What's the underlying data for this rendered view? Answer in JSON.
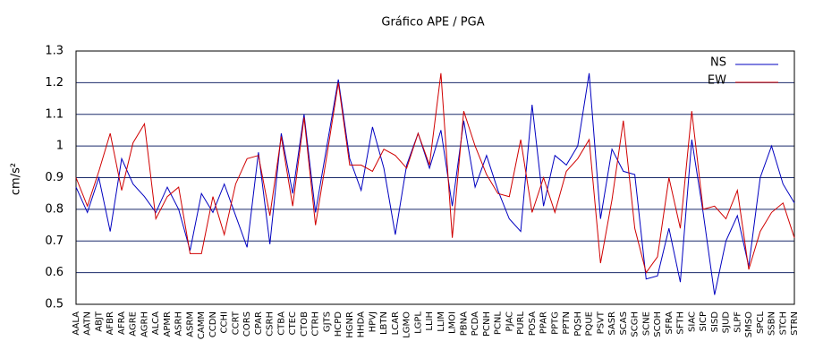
{
  "chart_data": {
    "type": "line",
    "title": "Gráfico  APE / PGA",
    "ylabel": "cm/s²",
    "categories": [
      "AALA",
      "AATN",
      "ABJT",
      "AFBR",
      "AFRA",
      "AGRE",
      "AGRH",
      "ALCA",
      "APMR",
      "ASRH",
      "ASRM",
      "CAMM",
      "CCDN",
      "CCHI",
      "CCRT",
      "CORS",
      "CPAR",
      "CSRH",
      "CTBA",
      "CTEC",
      "CTOB",
      "CTRH",
      "GJTS",
      "HCPD",
      "HGNR",
      "HHDA",
      "HPVJ",
      "LBTN",
      "LCAR",
      "LGMO",
      "LGPL",
      "LLIH",
      "LLIM",
      "LMOI",
      "PBNA",
      "PCDA",
      "PCNH",
      "PCNL",
      "PJAC",
      "PURL",
      "POSA",
      "PPAR",
      "PPTG",
      "PPTN",
      "PQSH",
      "PQUE",
      "PSVT",
      "SASR",
      "SCAS",
      "SCGH",
      "SCNE",
      "SCOH",
      "SFRA",
      "SFTH",
      "SIAC",
      "SICP",
      "SISD",
      "SJUD",
      "SLPF",
      "SMSO",
      "SPCL",
      "SSBN",
      "STCH",
      "STRN"
    ],
    "series": [
      {
        "name": "NS",
        "color": "#0000c0",
        "values": [
          0.87,
          0.79,
          0.9,
          0.73,
          0.96,
          0.88,
          0.84,
          0.79,
          0.87,
          0.8,
          0.67,
          0.85,
          0.79,
          0.88,
          0.78,
          0.68,
          0.98,
          0.69,
          1.04,
          0.85,
          1.1,
          0.79,
          1.0,
          1.21,
          0.96,
          0.86,
          1.06,
          0.93,
          0.72,
          0.94,
          1.04,
          0.93,
          1.05,
          0.81,
          1.08,
          0.87,
          0.97,
          0.86,
          0.77,
          0.73,
          1.13,
          0.81,
          0.97,
          0.94,
          1.0,
          1.23,
          0.77,
          0.99,
          0.92,
          0.91,
          0.58,
          0.59,
          0.74,
          0.57,
          1.02,
          0.79,
          0.53,
          0.7,
          0.78,
          0.62,
          0.9,
          1.0,
          0.88,
          0.82
        ]
      },
      {
        "name": "EW",
        "color": "#d00000",
        "values": [
          0.9,
          0.81,
          0.92,
          1.04,
          0.86,
          1.01,
          1.07,
          0.77,
          0.84,
          0.87,
          0.66,
          0.66,
          0.84,
          0.72,
          0.88,
          0.96,
          0.97,
          0.78,
          1.03,
          0.81,
          1.09,
          0.75,
          0.97,
          1.2,
          0.94,
          0.94,
          0.92,
          0.99,
          0.97,
          0.93,
          1.04,
          0.94,
          1.23,
          0.71,
          1.11,
          1.0,
          0.91,
          0.85,
          0.84,
          1.02,
          0.79,
          0.9,
          0.79,
          0.92,
          0.96,
          1.02,
          0.63,
          0.83,
          1.08,
          0.74,
          0.6,
          0.65,
          0.9,
          0.74,
          1.11,
          0.8,
          0.81,
          0.77,
          0.86,
          0.61,
          0.73,
          0.79,
          0.82,
          0.71
        ]
      }
    ],
    "ylim": [
      0.5,
      1.3
    ],
    "yticks": [
      0.5,
      0.6,
      0.7,
      0.8,
      0.9,
      1,
      1.1,
      1.2,
      1.3
    ],
    "grid": true,
    "legend": "upper right"
  }
}
